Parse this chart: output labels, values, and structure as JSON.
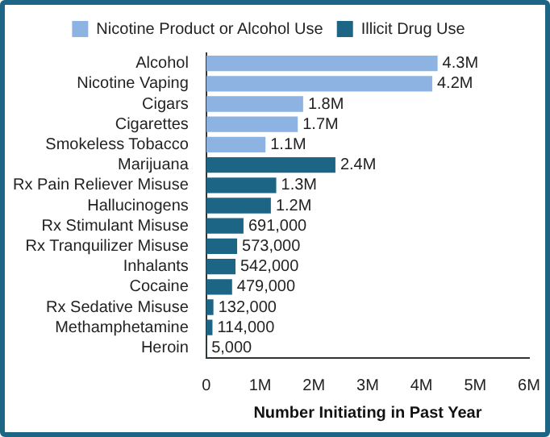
{
  "chart_data": {
    "type": "bar",
    "orientation": "horizontal",
    "xlabel": "Number Initiating in Past Year",
    "categories": [
      "Alcohol",
      "Nicotine Vaping",
      "Cigars",
      "Cigarettes",
      "Smokeless Tobacco",
      "Marijuana",
      "Rx Pain Reliever Misuse",
      "Hallucinogens",
      "Rx Stimulant Misuse",
      "Rx Tranquilizer Misuse",
      "Inhalants",
      "Cocaine",
      "Rx Sedative Misuse",
      "Methamphetamine",
      "Heroin"
    ],
    "series": [
      {
        "name": "Nicotine Product or Alcohol Use",
        "color": "#8db3e2",
        "values": [
          4300000,
          4200000,
          1800000,
          1700000,
          1100000,
          null,
          null,
          null,
          null,
          null,
          null,
          null,
          null,
          null,
          null
        ],
        "value_labels": [
          "4.3M",
          "4.2M",
          "1.8M",
          "1.7M",
          "1.1M",
          null,
          null,
          null,
          null,
          null,
          null,
          null,
          null,
          null,
          null
        ]
      },
      {
        "name": "Illicit Drug Use",
        "color": "#1d6584",
        "values": [
          null,
          null,
          null,
          null,
          null,
          2400000,
          1300000,
          1200000,
          691000,
          573000,
          542000,
          479000,
          132000,
          114000,
          5000
        ],
        "value_labels": [
          null,
          null,
          null,
          null,
          null,
          "2.4M",
          "1.3M",
          "1.2M",
          "691,000",
          "573,000",
          "542,000",
          "479,000",
          "132,000",
          "114,000",
          "5,000"
        ]
      }
    ],
    "xlim": [
      0,
      6000000
    ],
    "xticks": [
      0,
      {
        "value": 1000000,
        "label": "1M"
      },
      {
        "value": 2000000,
        "label": "2M"
      },
      {
        "value": 3000000,
        "label": "3M"
      },
      {
        "value": 4000000,
        "label": "4M"
      },
      {
        "value": 5000000,
        "label": "5M"
      },
      {
        "value": 6000000,
        "label": "6M"
      }
    ],
    "grid": false,
    "legend": "top"
  }
}
